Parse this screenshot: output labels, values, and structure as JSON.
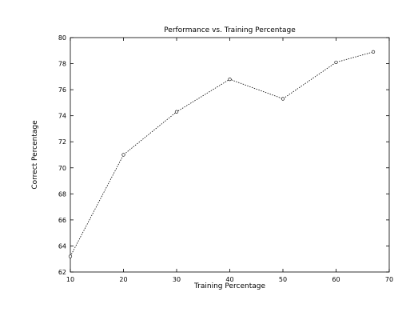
{
  "chart_data": {
    "type": "line",
    "title": "Performance vs. Training Percentage",
    "xlabel": "Training Percentage",
    "ylabel": "Correct Percentage",
    "xlim": [
      10,
      70
    ],
    "ylim": [
      62,
      80
    ],
    "xticks": [
      10,
      20,
      30,
      40,
      50,
      60,
      70
    ],
    "yticks": [
      62,
      64,
      66,
      68,
      70,
      72,
      74,
      76,
      78,
      80
    ],
    "grid": false,
    "series": [
      {
        "x": [
          10,
          20,
          30,
          40,
          50,
          60,
          67
        ],
        "y": [
          63.2,
          71.0,
          74.3,
          76.8,
          75.3,
          78.1,
          78.9
        ]
      }
    ]
  }
}
